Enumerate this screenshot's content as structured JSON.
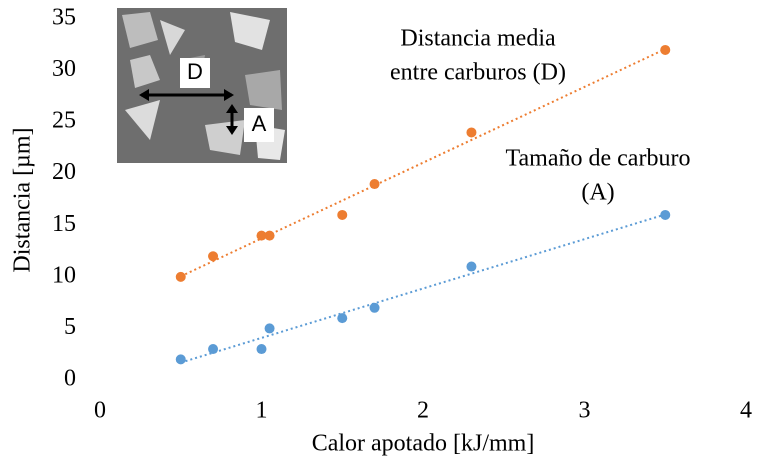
{
  "chart_data": {
    "type": "scatter",
    "x_label": "Calor apotado [kJ/mm]",
    "y_label": "Distancia [µm]",
    "xlim": [
      0,
      4
    ],
    "xticks": [
      0,
      1,
      2,
      3,
      4
    ],
    "ylim": [
      0,
      35
    ],
    "yticks": [
      0,
      5,
      10,
      15,
      20,
      25,
      30,
      35
    ],
    "grid": false,
    "trendline": "linear",
    "series": [
      {
        "label": [
          "Distancia media",
          "entre carburos (D)"
        ],
        "color": "#ed7d31",
        "x": [
          0.5,
          0.7,
          1,
          1.05,
          1.5,
          1.7,
          2.3,
          3.5
        ],
        "values": [
          10,
          12,
          14,
          14,
          16,
          19,
          24,
          32
        ]
      },
      {
        "label": [
          "Tamaño de carburo",
          "(A)"
        ],
        "color": "#5b9bd5",
        "x": [
          0.5,
          0.7,
          1,
          1.05,
          1.5,
          1.7,
          2.3,
          3.5
        ],
        "values": [
          2,
          3,
          3,
          5,
          6,
          7,
          11,
          16
        ]
      }
    ],
    "inset_labels": [
      "D",
      "A"
    ]
  }
}
